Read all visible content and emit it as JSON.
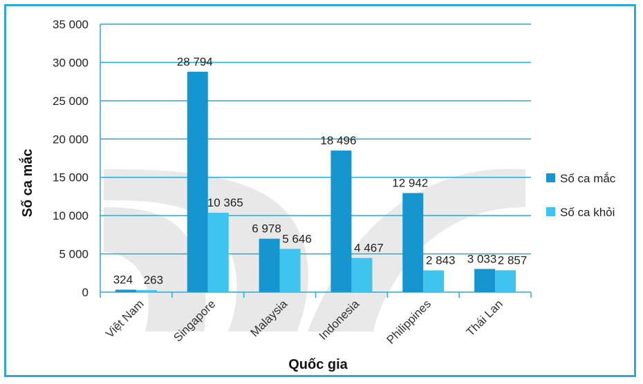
{
  "chart_data": {
    "type": "bar",
    "categories": [
      "Việt Nam",
      "Singapore",
      "Malaysia",
      "Indonesia",
      "Philippines",
      "Thái Lan"
    ],
    "series": [
      {
        "name": "Số ca mắc",
        "values": [
          324,
          28794,
          6978,
          18496,
          12942,
          3033
        ],
        "labels": [
          "324",
          "28 794",
          "6 978",
          "18 496",
          "12 942",
          "3 033"
        ],
        "color": "#1596d0"
      },
      {
        "name": "Số ca khỏi",
        "values": [
          263,
          10365,
          5646,
          4467,
          2843,
          2857
        ],
        "labels": [
          "263",
          "10 365",
          "5 646",
          "4 467",
          "2 843",
          "2 857"
        ],
        "color": "#3fc3ef"
      }
    ],
    "yticks": [
      "0",
      "5 000",
      "10 000",
      "15 000",
      "20 000",
      "25 000",
      "30 000",
      "35 000"
    ],
    "ylim": [
      0,
      35000
    ],
    "xlabel": "Quốc gia",
    "ylabel": "Số ca mắc",
    "legend_position": "right",
    "grid": true,
    "gridline_color": "#29a9d6"
  }
}
